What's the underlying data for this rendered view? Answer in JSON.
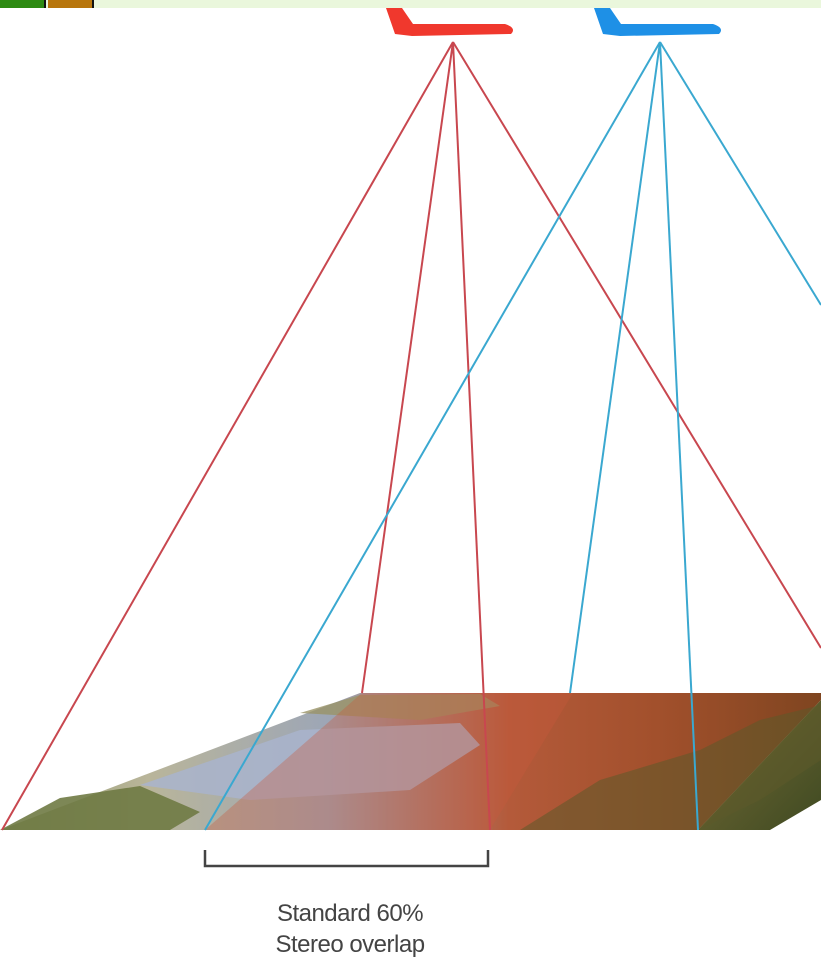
{
  "caption": {
    "line1": "Standard 60%",
    "line2": "Stereo overlap"
  },
  "colors": {
    "plane_left": "#f0382d",
    "plane_right": "#1e90e6",
    "rays_left": "#c8474f",
    "rays_right": "#3aa8d0",
    "bracket": "#444444",
    "toolbar_green": "#2d8a12",
    "toolbar_orange": "#b8760c"
  },
  "icons": {
    "left_aircraft": "airplane-silhouette",
    "right_aircraft": "airplane-silhouette"
  }
}
